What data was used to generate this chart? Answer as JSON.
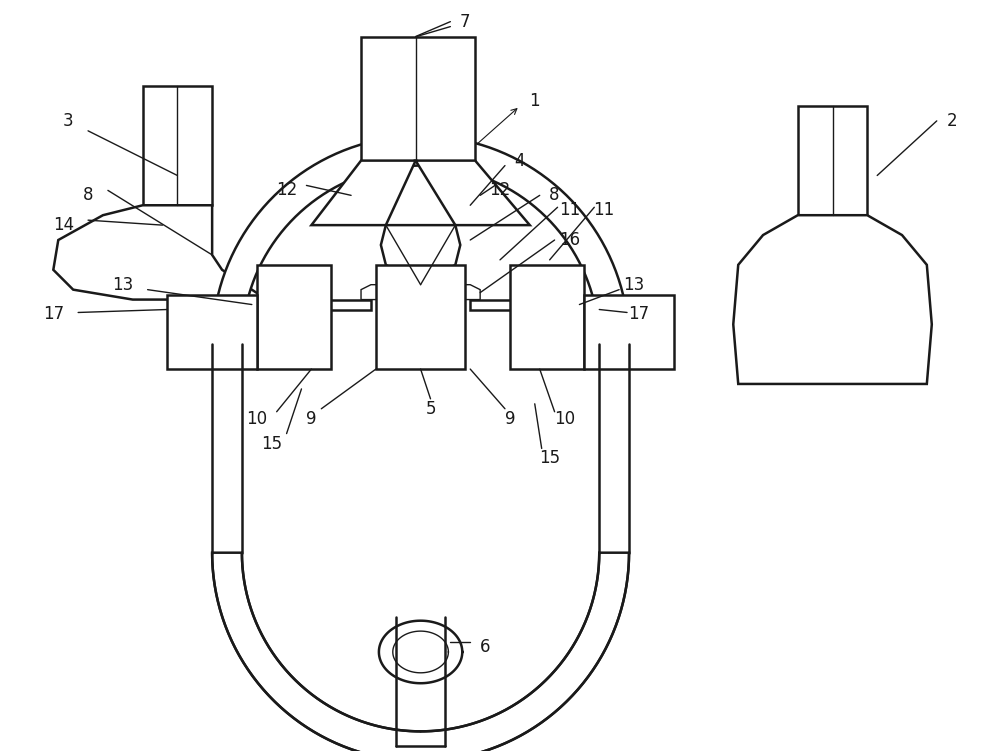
{
  "background_color": "#ffffff",
  "line_color": "#1a1a1a",
  "lw_thick": 1.8,
  "lw_thin": 1.0,
  "label_fontsize": 12
}
